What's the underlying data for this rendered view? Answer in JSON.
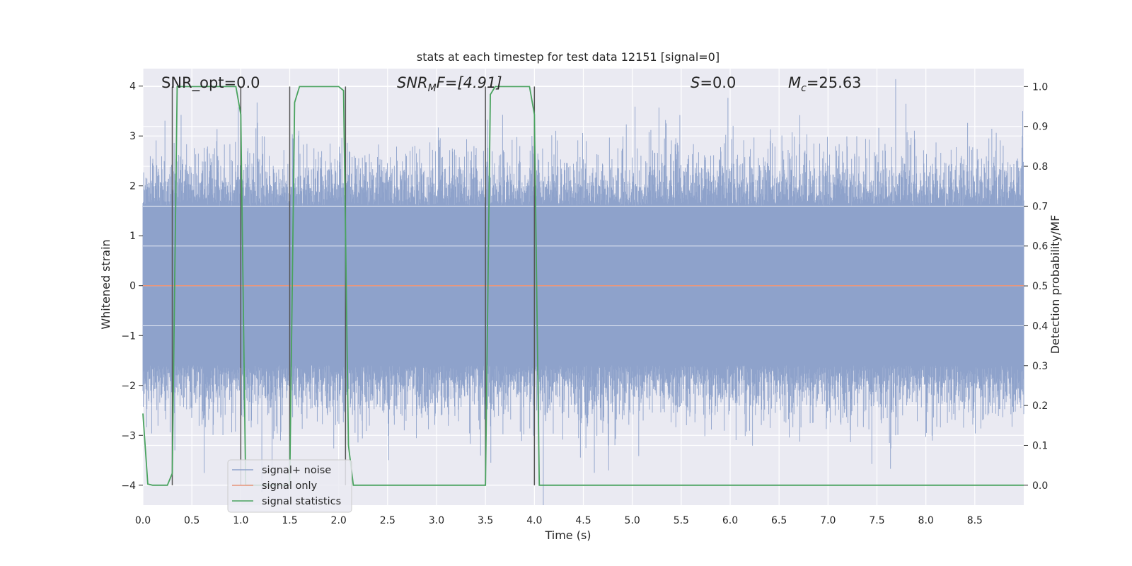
{
  "chart_data": {
    "type": "line",
    "title": "stats at each timestep for test data 12151 [signal=0]",
    "xlabel": "Time (s)",
    "ylabel": "Whitened strain",
    "ylabel_right": "Detection probability/MF",
    "xlim": [
      0,
      9.0
    ],
    "ylim": [
      -4.4,
      4.35
    ],
    "ylim_right": [
      -0.05,
      1.045
    ],
    "xticks": [
      "0.0",
      "0.5",
      "1.0",
      "1.5",
      "2.0",
      "2.5",
      "3.0",
      "3.5",
      "4.0",
      "4.5",
      "5.0",
      "5.5",
      "6.0",
      "6.5",
      "7.0",
      "7.5",
      "8.0",
      "8.5"
    ],
    "yticks": [
      "4",
      "3",
      "2",
      "1",
      "0",
      "−1",
      "−2",
      "−3",
      "−4"
    ],
    "yticks_right": [
      "1.0",
      "0.9",
      "0.8",
      "0.7",
      "0.6",
      "0.5",
      "0.4",
      "0.3",
      "0.2",
      "0.1",
      "0.0"
    ],
    "grid": true,
    "legend_location": "lower-left",
    "annotations": {
      "snr_opt": "SNR_opt=0.0",
      "snr_mf_base": "SNR",
      "snr_mf_sub": "M",
      "snr_mf_rest": "F=[4.91]",
      "s_var": "S",
      "s_rest": "=0.0",
      "mc_var": "M",
      "mc_sub": "c",
      "mc_rest": "=25.63"
    },
    "series": [
      {
        "name": "signal+ noise",
        "color": "#8ea2cb",
        "description_values": "dense noise, roughly within ±2.5 (peaks to ±4)",
        "amplitude_envelope": 1.6
      },
      {
        "name": "signal only",
        "color": "#e8957a",
        "x": [
          0,
          9.0
        ],
        "y": [
          0,
          0
        ]
      },
      {
        "name": "signal statistics",
        "color": "#4aa35f",
        "axis": "right",
        "x": [
          0,
          0.05,
          0.1,
          0.25,
          0.3,
          0.35,
          0.95,
          1.0,
          1.05,
          1.5,
          1.55,
          1.6,
          2.0,
          2.05,
          2.1,
          2.15,
          2.2,
          3.5,
          3.55,
          3.6,
          3.95,
          4.0,
          4.05,
          4.1,
          9.0
        ],
        "y": [
          0.18,
          0.003,
          0.0,
          0.0,
          0.03,
          1.0,
          1.0,
          0.93,
          0.0,
          0.0,
          0.96,
          1.0,
          1.0,
          0.99,
          0.1,
          0.0,
          0.0,
          0.0,
          0.98,
          1.0,
          1.0,
          0.93,
          0.0,
          0.0,
          0.0
        ]
      }
    ],
    "vertical_markers": {
      "color": "#555555",
      "x": [
        0.3,
        1.0,
        1.5,
        2.07,
        3.5,
        4.0
      ]
    }
  }
}
